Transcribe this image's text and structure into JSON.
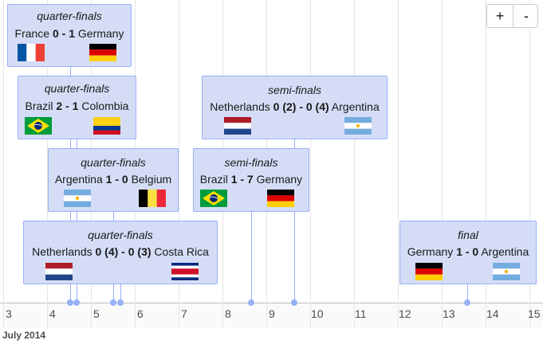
{
  "timeline": {
    "month_label": "July 2014",
    "ticks": [
      "3",
      "4",
      "5",
      "6",
      "7",
      "8",
      "9",
      "10",
      "11",
      "12",
      "13",
      "14",
      "15"
    ],
    "zoom_in_label": "+",
    "zoom_out_label": "-",
    "colors": {
      "event_fill": "#d5ddf6",
      "event_border": "#97b0f8"
    }
  },
  "events": [
    {
      "round": "quarter-finals",
      "team1": "France",
      "team2": "Germany",
      "score": "0 - 1",
      "flag1": "flag-france-icon",
      "flag2": "flag-germany-icon"
    },
    {
      "round": "quarter-finals",
      "team1": "Brazil",
      "team2": "Colombia",
      "score": "2 - 1",
      "flag1": "flag-brazil-icon",
      "flag2": "flag-colombia-icon"
    },
    {
      "round": "quarter-finals",
      "team1": "Argentina",
      "team2": "Belgium",
      "score": "1 - 0",
      "flag1": "flag-argentina-icon",
      "flag2": "flag-belgium-icon"
    },
    {
      "round": "quarter-finals",
      "team1": "Netherlands",
      "team2": "Costa Rica",
      "score": "0 (4) - 0 (3)",
      "flag1": "flag-netherlands-icon",
      "flag2": "flag-costa-rica-icon"
    },
    {
      "round": "semi-finals",
      "team1": "Netherlands",
      "team2": "Argentina",
      "score": "0 (2) - 0 (4)",
      "flag1": "flag-netherlands-icon",
      "flag2": "flag-argentina-icon"
    },
    {
      "round": "semi-finals",
      "team1": "Brazil",
      "team2": "Germany",
      "score": "1 - 7",
      "flag1": "flag-brazil-icon",
      "flag2": "flag-germany-icon"
    },
    {
      "round": "final",
      "team1": "Germany",
      "team2": "Argentina",
      "score": "1 - 0",
      "flag1": "flag-germany-icon",
      "flag2": "flag-argentina-icon"
    }
  ]
}
